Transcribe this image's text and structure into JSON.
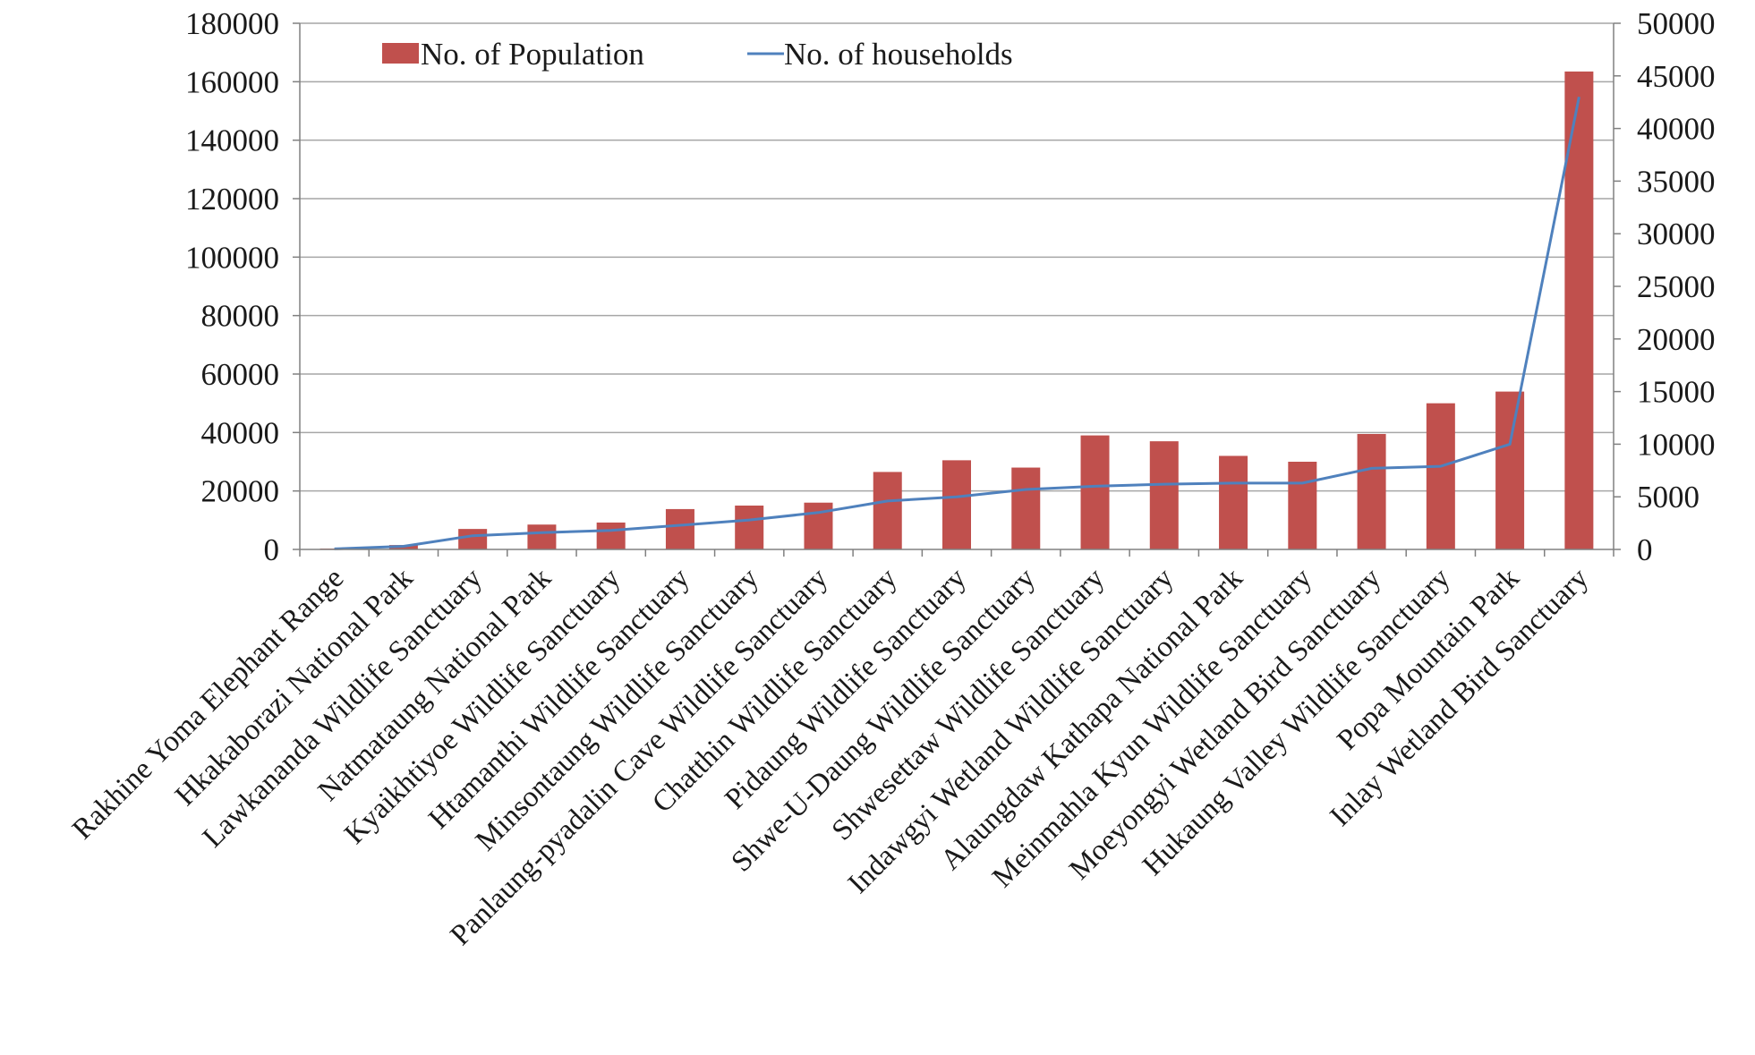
{
  "chart_data": {
    "type": "bar",
    "title": "",
    "xlabel": "",
    "ylabel": "",
    "categories": [
      "Rakhine Yoma Elephant Range",
      "Hkakaborazi National Park",
      "Lawkananda Wildlife Sanctuary",
      "Natmataung National Park",
      "Kyaikhtiyoe Wildlife Sanctuary",
      "Htamanthi Wildlife Sanctuary",
      "Minsontaung Wildlife Sanctuary",
      "Panlaung-pyadalin Cave Wildlife Sanctuary",
      "Chatthin Wildlife Sanctuary",
      "Pidaung Wildlife Sanctuary",
      "Shwe-U-Daung Wildlife Sanctuary",
      "Shwesettaw Wildlife Sanctuary",
      "Indawgyi Wetland Wildlife Sanctuary",
      "Alaungdaw Kathapa National Park",
      "Meinmahla Kyun Wildlife Sanctuary",
      "Moeyongyi Wetland Bird Sanctuary",
      "Hukaung Valley Wildlife Sanctuary",
      "Popa Mountain Park",
      "Inlay Wetland Bird Sanctuary"
    ],
    "series": [
      {
        "name": "No. of Population",
        "type": "bar",
        "axis": "left",
        "color": "#c0504d",
        "values": [
          300,
          1500,
          7000,
          8500,
          9200,
          13800,
          15000,
          16000,
          26500,
          30500,
          28000,
          39000,
          37000,
          32000,
          30000,
          39500,
          50000,
          54000,
          163500
        ]
      },
      {
        "name": "No. of households",
        "type": "line",
        "axis": "right",
        "color": "#4f81bd",
        "values": [
          50,
          300,
          1300,
          1600,
          1800,
          2300,
          2800,
          3500,
          4600,
          5000,
          5700,
          6000,
          6200,
          6300,
          6300,
          7700,
          7900,
          10000,
          43000
        ]
      }
    ],
    "y_left": {
      "min": 0,
      "max": 180000,
      "step": 20000,
      "labels": [
        "0",
        "20000",
        "40000",
        "60000",
        "80000",
        "100000",
        "120000",
        "140000",
        "160000",
        "180000"
      ]
    },
    "y_right": {
      "min": 0,
      "max": 50000,
      "step": 5000,
      "labels": [
        "0",
        "5000",
        "10000",
        "15000",
        "20000",
        "25000",
        "30000",
        "35000",
        "40000",
        "45000",
        "50000"
      ]
    },
    "grid": true,
    "legend_position": "top-left"
  }
}
